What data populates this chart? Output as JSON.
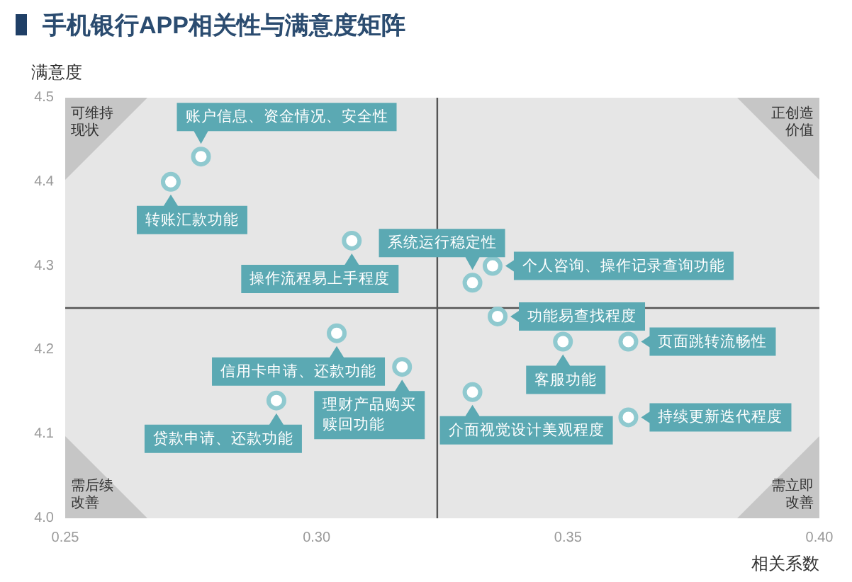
{
  "chart_data": {
    "type": "scatter",
    "title": "手机银行APP相关性与满意度矩阵",
    "xlabel": "相关系数",
    "ylabel": "满意度",
    "xlim": [
      0.25,
      0.4
    ],
    "ylim": [
      4.0,
      4.5
    ],
    "xticks": [
      0.25,
      {
        "value": 0.3,
        "label": "0.30"
      },
      0.35,
      {
        "value": 0.4,
        "label": "0.40"
      }
    ],
    "yticks": [
      {
        "value": 4,
        "label": "4.0"
      },
      4.1,
      4.2,
      4.3,
      4.4,
      4.5
    ],
    "grid": false,
    "marker": "circle",
    "series": [
      {
        "color": "#8fc9cf",
        "x": [
          0.277,
          0.271,
          0.307,
          0.331,
          0.335,
          0.336,
          0.349,
          0.362,
          0.331,
          0.362,
          0.304,
          0.317,
          0.292
        ],
        "values": [
          4.43,
          4.4,
          4.33,
          4.28,
          4.3,
          4.24,
          4.21,
          4.21,
          4.15,
          4.12,
          4.22,
          4.18,
          4.14
        ]
      }
    ],
    "ref_lines": [
      {
        "axis": "x",
        "value": 0.324,
        "color": "#555555"
      },
      {
        "axis": "y",
        "value": 4.25,
        "color": "#555555"
      }
    ],
    "annotations": [
      {
        "text": "账户信息、资金情况、安全性",
        "x": 0.277,
        "y": 4.43
      },
      {
        "text": "转账汇款功能",
        "x": 0.271,
        "y": 4.4
      },
      {
        "text": "操作流程易上手程度",
        "x": 0.307,
        "y": 4.33
      },
      {
        "text": "系统运行稳定性",
        "x": 0.331,
        "y": 4.28
      },
      {
        "text": "个人咨询、操作记录查询功能",
        "x": 0.335,
        "y": 4.3
      },
      {
        "text": "功能易查找程度",
        "x": 0.336,
        "y": 4.24
      },
      {
        "text": "客服功能",
        "x": 0.349,
        "y": 4.21
      },
      {
        "text": "页面跳转流畅性",
        "x": 0.362,
        "y": 4.21
      },
      {
        "text": "介面视觉设计美观程度",
        "x": 0.331,
        "y": 4.15
      },
      {
        "text": "持续更新迭代程度",
        "x": 0.362,
        "y": 4.12
      },
      {
        "text": "信用卡申请、还款功能",
        "x": 0.304,
        "y": 4.22
      },
      {
        "text": "理财产品购买赎回功能",
        "x": 0.317,
        "y": 4.18
      },
      {
        "text": "贷款申请、还款功能",
        "x": 0.292,
        "y": 4.14
      },
      "可维持现状",
      "正创造价值",
      "需后续改善",
      "需立即改善"
    ]
  }
}
